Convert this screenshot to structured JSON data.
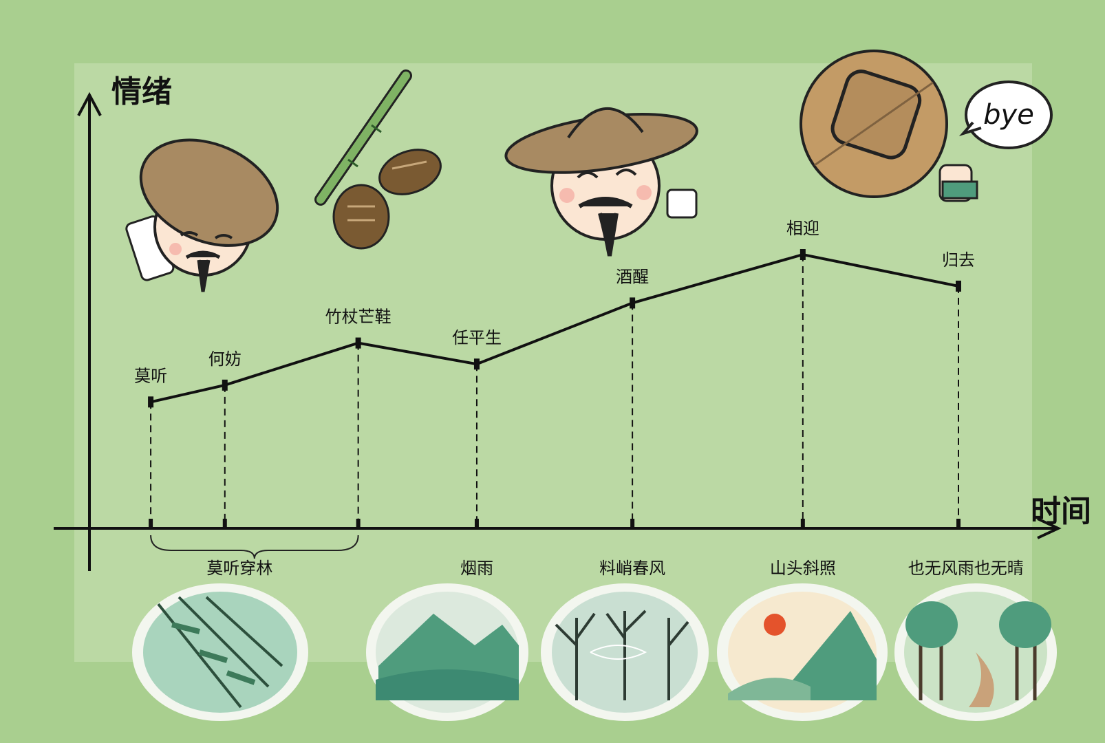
{
  "chart_data": {
    "type": "line",
    "ylabel": "情绪",
    "xlabel": "时间",
    "points": [
      {
        "label": "莫听",
        "x": 1,
        "y": 3.0
      },
      {
        "label": "何妨",
        "x": 1.5,
        "y": 3.4
      },
      {
        "label": "竹杖芒鞋",
        "x": 2.4,
        "y": 4.4
      },
      {
        "label": "任平生",
        "x": 3.2,
        "y": 3.9
      },
      {
        "label": "酒醒",
        "x": 4.25,
        "y": 5.35
      },
      {
        "label": "相迎",
        "x": 5.4,
        "y": 6.5
      },
      {
        "label": "归去",
        "x": 6.45,
        "y": 5.75
      }
    ],
    "xlim": [
      0.8,
      6.6
    ],
    "ylim": [
      0,
      7
    ],
    "categories": [
      {
        "label": "莫听穿林",
        "x": 1.6,
        "brace": [
          1,
          2.4
        ]
      },
      {
        "label": "烟雨",
        "x": 3.2
      },
      {
        "label": "料峭春风",
        "x": 4.25
      },
      {
        "label": "山头斜照",
        "x": 5.4
      },
      {
        "label": "也无风雨也无晴",
        "x": 6.5
      }
    ]
  },
  "speech_bubble": "bye",
  "icons": [
    "scholar-writing-icon",
    "bamboo-staff-icon",
    "straw-sandals-icon",
    "laughing-scholar-icon",
    "departing-scholar-icon",
    "bamboo-rain-scene",
    "misty-mountain-scene",
    "bare-trees-wind-scene",
    "sunset-mountain-scene",
    "forest-path-scene"
  ],
  "colors": {
    "background": "#a9cf8f",
    "panel": "#bedba8",
    "line": "#111111",
    "hat": "#a88a62",
    "scene_green": "#4f9c7d"
  }
}
